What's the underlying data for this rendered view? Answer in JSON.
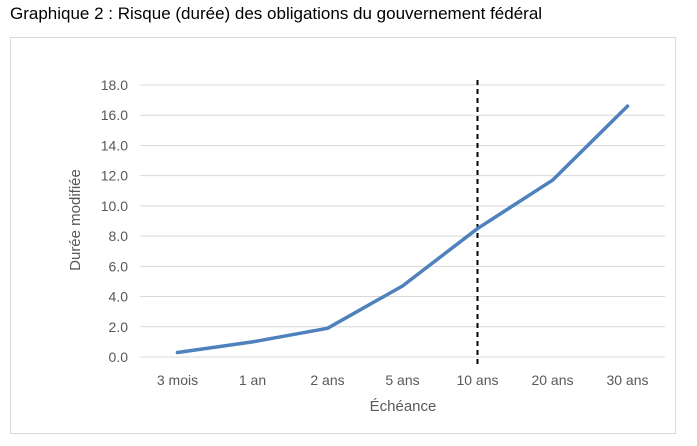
{
  "title": "Graphique 2 : Risque (durée) des obligations du gouvernement fédéral",
  "chart_data": {
    "type": "line",
    "title": "Graphique 2 : Risque (durée) des obligations du gouvernement fédéral",
    "xlabel": "Échéance",
    "ylabel": "Durée modifiée",
    "categories": [
      "3 mois",
      "1 an",
      "2 ans",
      "5 ans",
      "10 ans",
      "20 ans",
      "30 ans"
    ],
    "series": [
      {
        "values": [
          0.3,
          1.0,
          1.9,
          4.7,
          8.5,
          11.7,
          16.6
        ]
      }
    ],
    "ylim": [
      0,
      18
    ],
    "yticks": [
      "0.0",
      "2.0",
      "4.0",
      "6.0",
      "8.0",
      "10.0",
      "12.0",
      "14.0",
      "16.0",
      "18.0"
    ],
    "grid": true,
    "legend": "none",
    "vertical_marker": {
      "category": "10 ans",
      "style": "dashed"
    },
    "colors": {
      "series": "#4f81bd",
      "grid": "#d9d9d9",
      "marker": "#000000",
      "text": "#595959"
    }
  }
}
